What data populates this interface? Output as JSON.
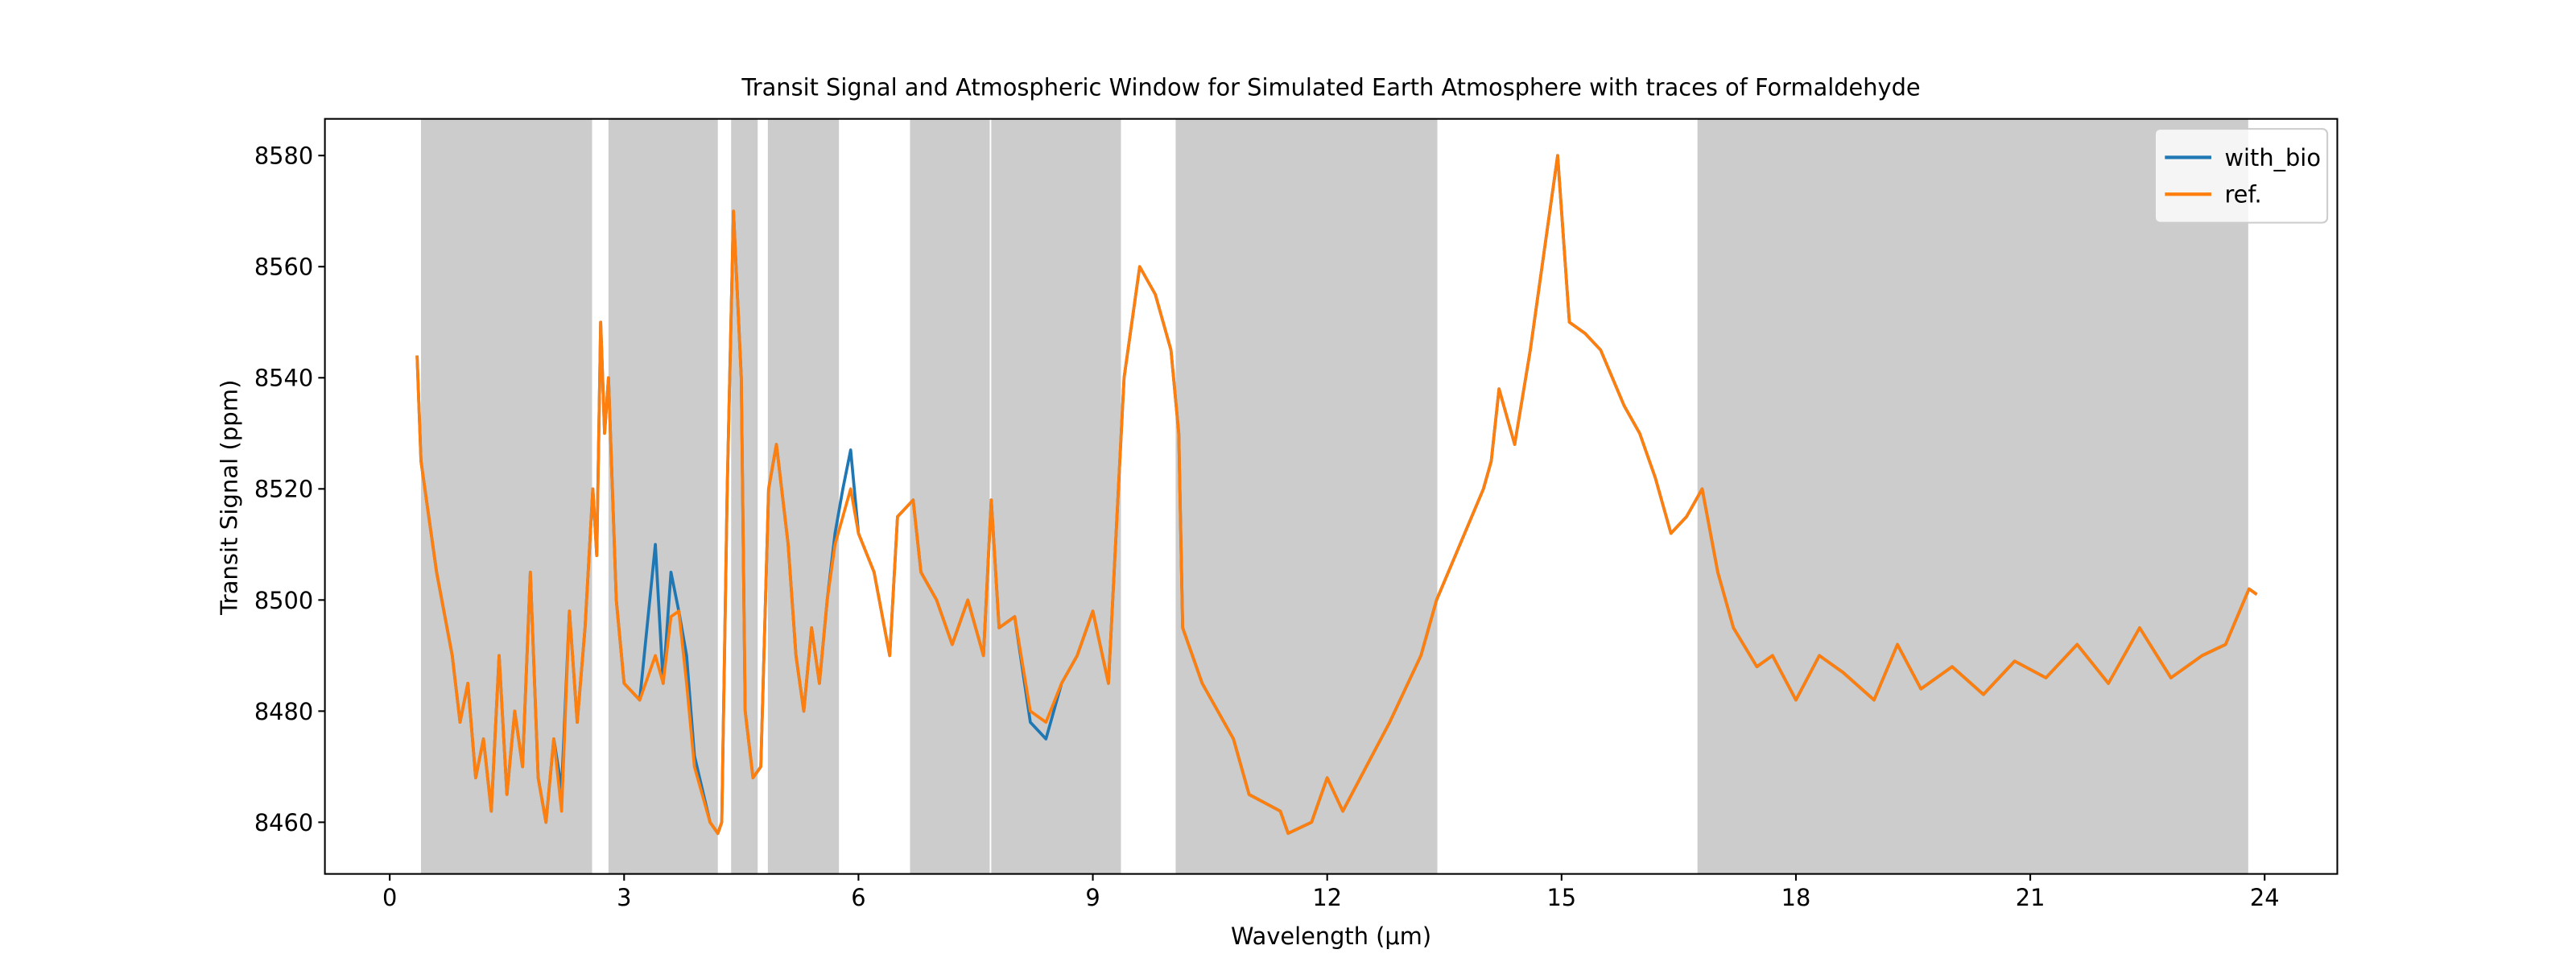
{
  "chart_data": {
    "type": "line",
    "title": "Transit Signal and Atmospheric Window for Simulated Earth Atmosphere with traces of Formaldehyde",
    "x_label": "Wavelength (μm)",
    "y_label": "Transit Signal (ppm)",
    "xlim": [
      -0.83,
      24.93
    ],
    "ylim": [
      8450.7,
      8586.6
    ],
    "xticks": [
      0,
      3,
      6,
      9,
      12,
      15,
      18,
      21,
      24
    ],
    "yticks": [
      8460,
      8480,
      8500,
      8520,
      8540,
      8560,
      8580
    ],
    "legend": "upper right",
    "shade_color": "#cccccc",
    "shaded_regions": [
      [
        0.4,
        2.59
      ],
      [
        2.8,
        4.2
      ],
      [
        4.37,
        4.71
      ],
      [
        4.84,
        5.75
      ],
      [
        6.66,
        7.68
      ],
      [
        7.7,
        9.36
      ],
      [
        10.06,
        13.41
      ],
      [
        16.74,
        23.79
      ]
    ],
    "x": [
      0.35,
      0.4,
      0.6,
      0.8,
      0.9,
      1.0,
      1.1,
      1.2,
      1.3,
      1.4,
      1.5,
      1.6,
      1.7,
      1.8,
      1.9,
      2.0,
      2.1,
      2.2,
      2.3,
      2.4,
      2.5,
      2.6,
      2.65,
      2.7,
      2.75,
      2.8,
      2.9,
      3.0,
      3.2,
      3.4,
      3.5,
      3.6,
      3.7,
      3.8,
      3.9,
      4.0,
      4.1,
      4.2,
      4.25,
      4.32,
      4.4,
      4.5,
      4.55,
      4.65,
      4.75,
      4.85,
      4.95,
      5.1,
      5.2,
      5.3,
      5.4,
      5.5,
      5.6,
      5.7,
      5.8,
      5.9,
      6.0,
      6.2,
      6.4,
      6.5,
      6.7,
      6.8,
      7.0,
      7.2,
      7.4,
      7.6,
      7.7,
      7.8,
      8.0,
      8.2,
      8.4,
      8.6,
      8.8,
      9.0,
      9.2,
      9.4,
      9.6,
      9.8,
      10.0,
      10.1,
      10.15,
      10.4,
      10.8,
      11.0,
      11.4,
      11.5,
      11.8,
      12.0,
      12.2,
      12.5,
      12.8,
      13.2,
      13.4,
      13.7,
      14.0,
      14.1,
      14.2,
      14.4,
      14.6,
      14.8,
      14.85,
      14.95,
      15.1,
      15.3,
      15.5,
      15.8,
      16.0,
      16.2,
      16.4,
      16.6,
      16.8,
      17.0,
      17.2,
      17.5,
      17.7,
      18.0,
      18.3,
      18.6,
      19.0,
      19.3,
      19.6,
      20.0,
      20.4,
      20.8,
      21.2,
      21.6,
      22.0,
      22.4,
      22.8,
      23.2,
      23.5,
      23.8,
      23.9
    ],
    "series": [
      {
        "name": "with_bio",
        "color": "#1f77b4",
        "values": [
          8544,
          8525,
          8505,
          8490,
          8478,
          8485,
          8468,
          8475,
          8462,
          8490,
          8465,
          8480,
          8470,
          8505,
          8468,
          8460,
          8475,
          8466,
          8498,
          8478,
          8495,
          8520,
          8508,
          8550,
          8530,
          8540,
          8500,
          8485,
          8482,
          8510,
          8485,
          8505,
          8498,
          8490,
          8472,
          8466,
          8460,
          8458,
          8460,
          8520,
          8570,
          8540,
          8480,
          8468,
          8470,
          8520,
          8528,
          8510,
          8490,
          8480,
          8495,
          8485,
          8500,
          8512,
          8520,
          8527,
          8512,
          8505,
          8490,
          8515,
          8518,
          8505,
          8500,
          8492,
          8500,
          8490,
          8518,
          8495,
          8497,
          8478,
          8475,
          8485,
          8490,
          8498,
          8485,
          8540,
          8560,
          8555,
          8545,
          8530,
          8495,
          8485,
          8475,
          8465,
          8462,
          8458,
          8460,
          8468,
          8462,
          8470,
          8478,
          8490,
          8500,
          8510,
          8520,
          8525,
          8538,
          8528,
          8545,
          8565,
          8570,
          8580,
          8550,
          8548,
          8545,
          8535,
          8530,
          8522,
          8512,
          8515,
          8520,
          8505,
          8495,
          8488,
          8490,
          8482,
          8490,
          8487,
          8482,
          8492,
          8484,
          8488,
          8483,
          8489,
          8486,
          8492,
          8485,
          8495,
          8486,
          8490,
          8492,
          8502,
          8501
        ]
      },
      {
        "name": "ref.",
        "color": "#ff7f0e",
        "values": [
          8544,
          8525,
          8505,
          8490,
          8478,
          8485,
          8468,
          8475,
          8462,
          8490,
          8465,
          8480,
          8470,
          8505,
          8468,
          8460,
          8475,
          8462,
          8498,
          8478,
          8495,
          8520,
          8508,
          8550,
          8530,
          8540,
          8500,
          8485,
          8482,
          8490,
          8485,
          8497,
          8498,
          8485,
          8470,
          8465,
          8460,
          8458,
          8460,
          8520,
          8570,
          8540,
          8480,
          8468,
          8470,
          8520,
          8528,
          8510,
          8490,
          8480,
          8495,
          8485,
          8500,
          8510,
          8515,
          8520,
          8512,
          8505,
          8490,
          8515,
          8518,
          8505,
          8500,
          8492,
          8500,
          8490,
          8518,
          8495,
          8497,
          8480,
          8478,
          8485,
          8490,
          8498,
          8485,
          8540,
          8560,
          8555,
          8545,
          8530,
          8495,
          8485,
          8475,
          8465,
          8462,
          8458,
          8460,
          8468,
          8462,
          8470,
          8478,
          8490,
          8500,
          8510,
          8520,
          8525,
          8538,
          8528,
          8545,
          8565,
          8570,
          8580,
          8550,
          8548,
          8545,
          8535,
          8530,
          8522,
          8512,
          8515,
          8520,
          8505,
          8495,
          8488,
          8490,
          8482,
          8490,
          8487,
          8482,
          8492,
          8484,
          8488,
          8483,
          8489,
          8486,
          8492,
          8485,
          8495,
          8486,
          8490,
          8492,
          8502,
          8501
        ]
      }
    ]
  }
}
